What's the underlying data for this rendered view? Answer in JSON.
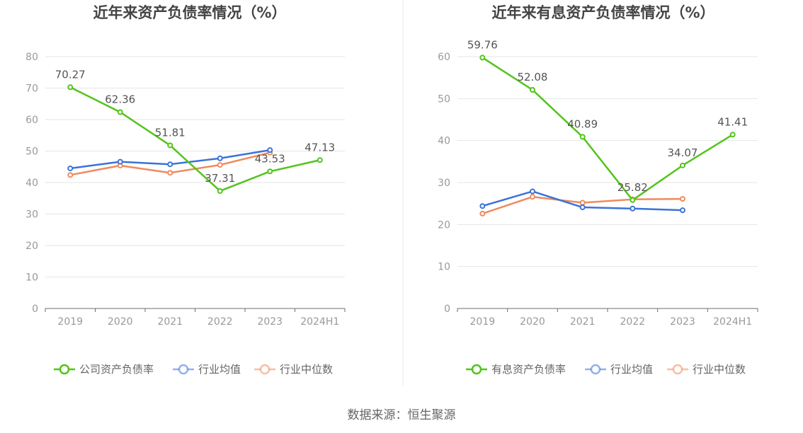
{
  "chart_data": [
    {
      "type": "line",
      "title": "近年来资产负债率情况（%）",
      "categories": [
        "2019",
        "2020",
        "2021",
        "2022",
        "2023",
        "2024H1"
      ],
      "ylim": [
        0,
        80
      ],
      "yticks": [
        "0",
        "10",
        "20",
        "30",
        "40",
        "50",
        "60",
        "70",
        "80"
      ],
      "grid": true,
      "legend_position": "bottom",
      "series": [
        {
          "name": "公司资产负债率",
          "color": "#52c41a",
          "values": [
            70.27,
            62.36,
            51.81,
            37.31,
            43.53,
            47.13
          ],
          "labels": [
            "70.27",
            "62.36",
            "51.81",
            "37.31",
            "43.53",
            "47.13"
          ]
        },
        {
          "name": "行业均值",
          "color": "#3b72d9",
          "values": [
            44.5,
            46.6,
            45.8,
            47.7,
            50.3,
            null
          ]
        },
        {
          "name": "行业中位数",
          "color": "#f08a5d",
          "values": [
            42.4,
            45.4,
            43.1,
            45.6,
            49.5,
            null
          ]
        }
      ]
    },
    {
      "type": "line",
      "title": "近年来有息资产负债率情况（%）",
      "categories": [
        "2019",
        "2020",
        "2021",
        "2022",
        "2023",
        "2024H1"
      ],
      "ylim": [
        0,
        60
      ],
      "yticks": [
        "0",
        "10",
        "20",
        "30",
        "40",
        "50",
        "60"
      ],
      "grid": true,
      "legend_position": "bottom",
      "series": [
        {
          "name": "有息资产负债率",
          "color": "#52c41a",
          "values": [
            59.76,
            52.08,
            40.89,
            25.82,
            34.07,
            41.41
          ],
          "labels": [
            "59.76",
            "52.08",
            "40.89",
            "25.82",
            "34.07",
            "41.41"
          ]
        },
        {
          "name": "行业均值",
          "color": "#3b72d9",
          "values": [
            24.4,
            27.9,
            24.1,
            23.8,
            23.4,
            null
          ]
        },
        {
          "name": "行业中位数",
          "color": "#f08a5d",
          "values": [
            22.6,
            26.6,
            25.2,
            26.0,
            26.1,
            null
          ]
        }
      ]
    }
  ],
  "source_text": "数据来源：恒生聚源"
}
